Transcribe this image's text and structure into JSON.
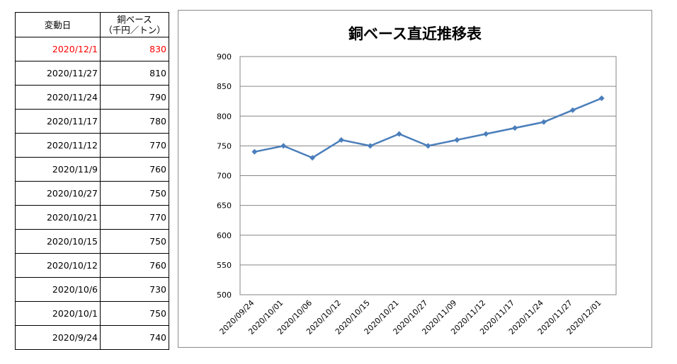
{
  "table": {
    "header_date": "変動日",
    "header_value_line1": "銅ベース",
    "header_value_line2": "（千円／トン）",
    "rows": [
      {
        "date": "2020/12/1",
        "value": "830"
      },
      {
        "date": "2020/11/27",
        "value": "810"
      },
      {
        "date": "2020/11/24",
        "value": "790"
      },
      {
        "date": "2020/11/17",
        "value": "780"
      },
      {
        "date": "2020/11/12",
        "value": "770"
      },
      {
        "date": "2020/11/9",
        "value": "760"
      },
      {
        "date": "2020/10/27",
        "value": "750"
      },
      {
        "date": "2020/10/21",
        "value": "770"
      },
      {
        "date": "2020/10/15",
        "value": "750"
      },
      {
        "date": "2020/10/12",
        "value": "760"
      },
      {
        "date": "2020/10/6",
        "value": "730"
      },
      {
        "date": "2020/10/1",
        "value": "750"
      },
      {
        "date": "2020/9/24",
        "value": "740"
      }
    ],
    "highlight_color": "#ff0000"
  },
  "chart_data": {
    "type": "line",
    "title": "銅ベース直近推移表",
    "xlabel": "",
    "ylabel": "",
    "categories": [
      "2020/09/24",
      "2020/10/01",
      "2020/10/06",
      "2020/10/12",
      "2020/10/15",
      "2020/10/21",
      "2020/10/27",
      "2020/11/09",
      "2020/11/12",
      "2020/11/17",
      "2020/11/24",
      "2020/11/27",
      "2020/12/01"
    ],
    "series": [
      {
        "values": [
          740,
          750,
          730,
          760,
          750,
          770,
          750,
          760,
          770,
          780,
          790,
          810,
          830
        ],
        "color": "#4a7ebb"
      }
    ],
    "ylim": [
      500,
      900
    ],
    "yticks": [
      500,
      550,
      600,
      650,
      700,
      750,
      800,
      850,
      900
    ],
    "grid": true,
    "legend": "none"
  }
}
